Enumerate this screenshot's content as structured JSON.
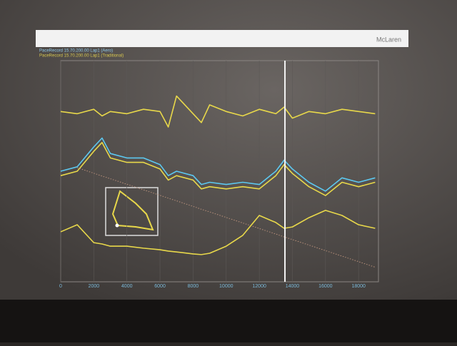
{
  "chart_data": {
    "type": "line",
    "title": "McLaren",
    "legend_lines": [
      "PaceRecord 15.70.200.00 Lap1 (Aero)",
      "PaceRecord 15.70.200.00 Lap1 (Traditional)"
    ],
    "x": [
      0,
      1000,
      2000,
      2500,
      3000,
      4000,
      5000,
      6000,
      6500,
      7000,
      8000,
      8500,
      9000,
      10000,
      11000,
      12000,
      13000,
      13500,
      14000,
      15000,
      16000,
      17000,
      18000,
      19000
    ],
    "series": [
      {
        "color": "#e8d84a",
        "values": [
          77,
          76,
          78,
          75,
          77,
          76,
          78,
          77,
          70,
          84,
          76,
          72,
          80,
          77,
          75,
          78,
          76,
          79,
          74,
          77,
          76,
          78,
          77,
          76
        ]
      },
      {
        "color": "#5cc8f0",
        "values": [
          50,
          52,
          61,
          65,
          58,
          56,
          56,
          53,
          48,
          50,
          48,
          44,
          45,
          44,
          45,
          44,
          50,
          55,
          51,
          45,
          41,
          47,
          45,
          47
        ]
      },
      {
        "color": "#e8d84a",
        "values": [
          48,
          50,
          59,
          63,
          56,
          54,
          54,
          51,
          46,
          48,
          46,
          42,
          43,
          42,
          43,
          42,
          48,
          53,
          49,
          43,
          39,
          45,
          43,
          45
        ]
      },
      {
        "color": "#b8907a",
        "dashed": true,
        "values": [
          null,
          51.6,
          49.1,
          47.8,
          46.6,
          44.1,
          41.6,
          39.1,
          37.8,
          36.6,
          34.1,
          32.8,
          31.6,
          29.1,
          26.6,
          24.1,
          21.6,
          20.3,
          19.1,
          16.6,
          14.1,
          11.6,
          9.1,
          6.6
        ]
      },
      {
        "color": "#e8d84a",
        "values": [
          22.6,
          25.8,
          17.7,
          17.1,
          16.1,
          16.1,
          15.2,
          14.5,
          13.9,
          13.5,
          12.6,
          12.3,
          12.9,
          16.1,
          21,
          30,
          26.8,
          24.2,
          24.8,
          29,
          32.3,
          30,
          25.8,
          24.2
        ]
      }
    ],
    "xlim": [
      0,
      19200
    ],
    "ylim": [
      0,
      100
    ],
    "xticks": [
      0,
      2000,
      4000,
      6000,
      8000,
      10000,
      12000,
      14000,
      16000,
      18000
    ],
    "grid": true,
    "cursor_x": 13550
  }
}
